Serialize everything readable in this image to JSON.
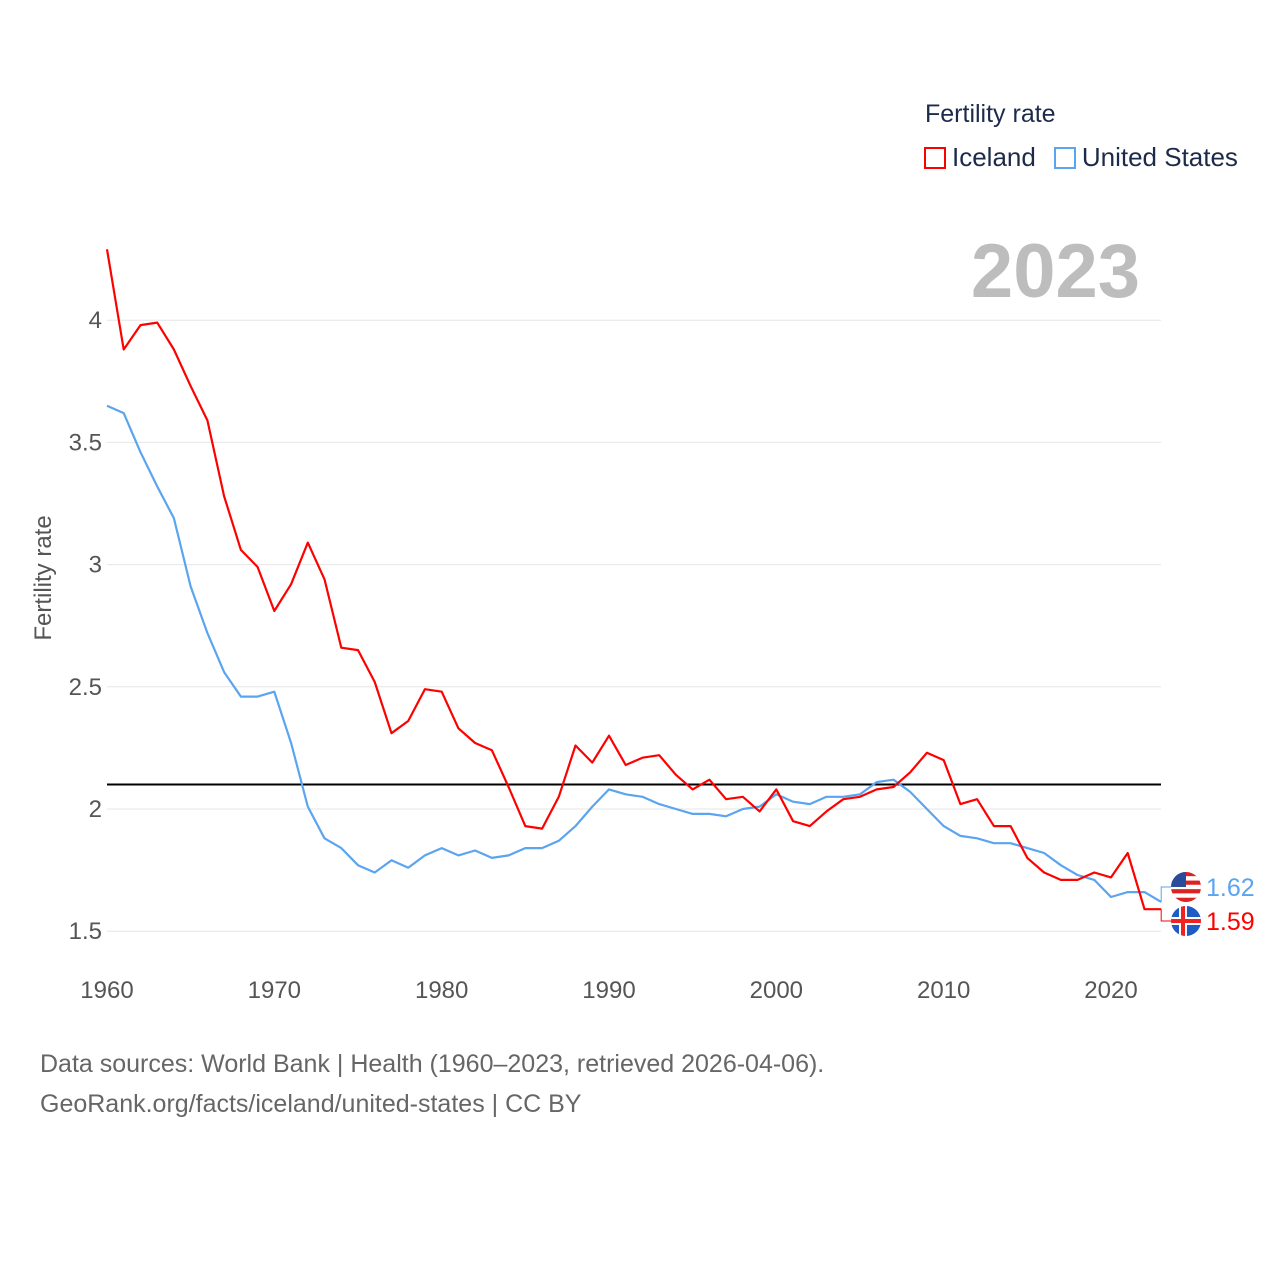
{
  "legend": {
    "title": "Fertility rate",
    "items": [
      {
        "label": "Iceland",
        "color": "#ff0000"
      },
      {
        "label": "United States",
        "color": "#5aa4f0"
      }
    ]
  },
  "year_label": "2023",
  "source": {
    "line1": "Data sources: World Bank | Health (1960–2023, retrieved 2026-04-06).",
    "line2": "GeoRank.org/facts/iceland/united-states | CC BY"
  },
  "end_labels": {
    "united_states": "1.62",
    "iceland": "1.59"
  },
  "chart_data": {
    "type": "line",
    "title": "",
    "xlabel": "",
    "ylabel": "Fertility rate",
    "xlim": [
      1960,
      2023
    ],
    "ylim": [
      1.5,
      4.3
    ],
    "xticks": [
      1960,
      1970,
      1980,
      1990,
      2000,
      2010,
      2020
    ],
    "yticks": [
      1.5,
      2,
      2.5,
      3,
      3.5,
      4
    ],
    "ytick_labels": [
      "1.5",
      "2",
      "2.5",
      "3",
      "3.5",
      "4"
    ],
    "reference_line": 2.1,
    "grid": true,
    "x_start": 1960,
    "series": [
      {
        "name": "Iceland",
        "color": "#ff0000",
        "values": [
          4.29,
          3.88,
          3.98,
          3.99,
          3.88,
          3.73,
          3.59,
          3.28,
          3.06,
          2.99,
          2.81,
          2.92,
          3.09,
          2.94,
          2.66,
          2.65,
          2.52,
          2.31,
          2.36,
          2.49,
          2.48,
          2.33,
          2.27,
          2.24,
          2.09,
          1.93,
          1.92,
          2.05,
          2.26,
          2.19,
          2.3,
          2.18,
          2.21,
          2.22,
          2.14,
          2.08,
          2.12,
          2.04,
          2.05,
          1.99,
          2.08,
          1.95,
          1.93,
          1.99,
          2.04,
          2.05,
          2.08,
          2.09,
          2.15,
          2.23,
          2.2,
          2.02,
          2.04,
          1.93,
          1.93,
          1.8,
          1.74,
          1.71,
          1.71,
          1.74,
          1.72,
          1.82,
          1.59,
          1.59
        ]
      },
      {
        "name": "United States",
        "color": "#5aa4f0",
        "values": [
          3.65,
          3.62,
          3.46,
          3.32,
          3.19,
          2.91,
          2.72,
          2.56,
          2.46,
          2.46,
          2.48,
          2.27,
          2.01,
          1.88,
          1.84,
          1.77,
          1.74,
          1.79,
          1.76,
          1.81,
          1.84,
          1.81,
          1.83,
          1.8,
          1.81,
          1.84,
          1.84,
          1.87,
          1.93,
          2.01,
          2.08,
          2.06,
          2.05,
          2.02,
          2.0,
          1.98,
          1.98,
          1.97,
          2.0,
          2.01,
          2.06,
          2.03,
          2.02,
          2.05,
          2.05,
          2.06,
          2.11,
          2.12,
          2.07,
          2.0,
          1.93,
          1.89,
          1.88,
          1.86,
          1.86,
          1.84,
          1.82,
          1.77,
          1.73,
          1.71,
          1.64,
          1.66,
          1.66,
          1.62
        ]
      }
    ]
  }
}
